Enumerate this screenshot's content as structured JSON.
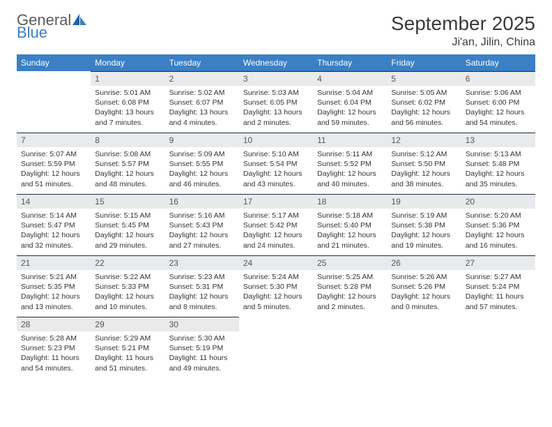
{
  "logo": {
    "general": "General",
    "blue": "Blue"
  },
  "title": "September 2025",
  "location": "Ji'an, Jilin, China",
  "weekdays": [
    "Sunday",
    "Monday",
    "Tuesday",
    "Wednesday",
    "Thursday",
    "Friday",
    "Saturday"
  ],
  "colors": {
    "header_bg": "#3b7fc4",
    "header_text": "#ffffff",
    "daynum_bg": "#e9eaeb",
    "border": "#1f2a44",
    "logo_gray": "#5a5a5a",
    "logo_blue": "#3b7fc4"
  },
  "weeks": [
    [
      {
        "empty": true,
        "firstRow": true
      },
      {
        "n": "1",
        "sr": "Sunrise: 5:01 AM",
        "ss": "Sunset: 6:08 PM",
        "dl": "Daylight: 13 hours and 7 minutes."
      },
      {
        "n": "2",
        "sr": "Sunrise: 5:02 AM",
        "ss": "Sunset: 6:07 PM",
        "dl": "Daylight: 13 hours and 4 minutes."
      },
      {
        "n": "3",
        "sr": "Sunrise: 5:03 AM",
        "ss": "Sunset: 6:05 PM",
        "dl": "Daylight: 13 hours and 2 minutes."
      },
      {
        "n": "4",
        "sr": "Sunrise: 5:04 AM",
        "ss": "Sunset: 6:04 PM",
        "dl": "Daylight: 12 hours and 59 minutes."
      },
      {
        "n": "5",
        "sr": "Sunrise: 5:05 AM",
        "ss": "Sunset: 6:02 PM",
        "dl": "Daylight: 12 hours and 56 minutes."
      },
      {
        "n": "6",
        "sr": "Sunrise: 5:06 AM",
        "ss": "Sunset: 6:00 PM",
        "dl": "Daylight: 12 hours and 54 minutes."
      }
    ],
    [
      {
        "n": "7",
        "sr": "Sunrise: 5:07 AM",
        "ss": "Sunset: 5:59 PM",
        "dl": "Daylight: 12 hours and 51 minutes."
      },
      {
        "n": "8",
        "sr": "Sunrise: 5:08 AM",
        "ss": "Sunset: 5:57 PM",
        "dl": "Daylight: 12 hours and 48 minutes."
      },
      {
        "n": "9",
        "sr": "Sunrise: 5:09 AM",
        "ss": "Sunset: 5:55 PM",
        "dl": "Daylight: 12 hours and 46 minutes."
      },
      {
        "n": "10",
        "sr": "Sunrise: 5:10 AM",
        "ss": "Sunset: 5:54 PM",
        "dl": "Daylight: 12 hours and 43 minutes."
      },
      {
        "n": "11",
        "sr": "Sunrise: 5:11 AM",
        "ss": "Sunset: 5:52 PM",
        "dl": "Daylight: 12 hours and 40 minutes."
      },
      {
        "n": "12",
        "sr": "Sunrise: 5:12 AM",
        "ss": "Sunset: 5:50 PM",
        "dl": "Daylight: 12 hours and 38 minutes."
      },
      {
        "n": "13",
        "sr": "Sunrise: 5:13 AM",
        "ss": "Sunset: 5:48 PM",
        "dl": "Daylight: 12 hours and 35 minutes."
      }
    ],
    [
      {
        "n": "14",
        "sr": "Sunrise: 5:14 AM",
        "ss": "Sunset: 5:47 PM",
        "dl": "Daylight: 12 hours and 32 minutes."
      },
      {
        "n": "15",
        "sr": "Sunrise: 5:15 AM",
        "ss": "Sunset: 5:45 PM",
        "dl": "Daylight: 12 hours and 29 minutes."
      },
      {
        "n": "16",
        "sr": "Sunrise: 5:16 AM",
        "ss": "Sunset: 5:43 PM",
        "dl": "Daylight: 12 hours and 27 minutes."
      },
      {
        "n": "17",
        "sr": "Sunrise: 5:17 AM",
        "ss": "Sunset: 5:42 PM",
        "dl": "Daylight: 12 hours and 24 minutes."
      },
      {
        "n": "18",
        "sr": "Sunrise: 5:18 AM",
        "ss": "Sunset: 5:40 PM",
        "dl": "Daylight: 12 hours and 21 minutes."
      },
      {
        "n": "19",
        "sr": "Sunrise: 5:19 AM",
        "ss": "Sunset: 5:38 PM",
        "dl": "Daylight: 12 hours and 19 minutes."
      },
      {
        "n": "20",
        "sr": "Sunrise: 5:20 AM",
        "ss": "Sunset: 5:36 PM",
        "dl": "Daylight: 12 hours and 16 minutes."
      }
    ],
    [
      {
        "n": "21",
        "sr": "Sunrise: 5:21 AM",
        "ss": "Sunset: 5:35 PM",
        "dl": "Daylight: 12 hours and 13 minutes."
      },
      {
        "n": "22",
        "sr": "Sunrise: 5:22 AM",
        "ss": "Sunset: 5:33 PM",
        "dl": "Daylight: 12 hours and 10 minutes."
      },
      {
        "n": "23",
        "sr": "Sunrise: 5:23 AM",
        "ss": "Sunset: 5:31 PM",
        "dl": "Daylight: 12 hours and 8 minutes."
      },
      {
        "n": "24",
        "sr": "Sunrise: 5:24 AM",
        "ss": "Sunset: 5:30 PM",
        "dl": "Daylight: 12 hours and 5 minutes."
      },
      {
        "n": "25",
        "sr": "Sunrise: 5:25 AM",
        "ss": "Sunset: 5:28 PM",
        "dl": "Daylight: 12 hours and 2 minutes."
      },
      {
        "n": "26",
        "sr": "Sunrise: 5:26 AM",
        "ss": "Sunset: 5:26 PM",
        "dl": "Daylight: 12 hours and 0 minutes."
      },
      {
        "n": "27",
        "sr": "Sunrise: 5:27 AM",
        "ss": "Sunset: 5:24 PM",
        "dl": "Daylight: 11 hours and 57 minutes."
      }
    ],
    [
      {
        "n": "28",
        "sr": "Sunrise: 5:28 AM",
        "ss": "Sunset: 5:23 PM",
        "dl": "Daylight: 11 hours and 54 minutes."
      },
      {
        "n": "29",
        "sr": "Sunrise: 5:29 AM",
        "ss": "Sunset: 5:21 PM",
        "dl": "Daylight: 11 hours and 51 minutes."
      },
      {
        "n": "30",
        "sr": "Sunrise: 5:30 AM",
        "ss": "Sunset: 5:19 PM",
        "dl": "Daylight: 11 hours and 49 minutes."
      },
      {
        "empty": true
      },
      {
        "empty": true
      },
      {
        "empty": true
      },
      {
        "empty": true
      }
    ]
  ]
}
